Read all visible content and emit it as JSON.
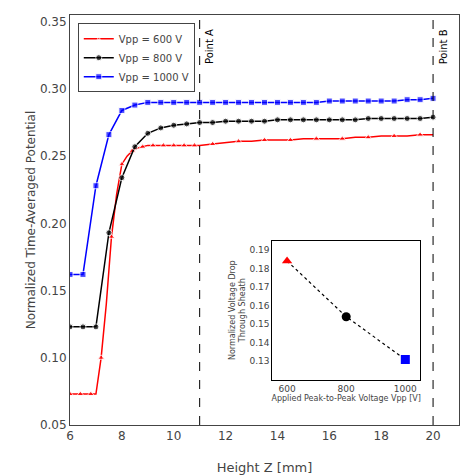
{
  "chart_data": [
    {
      "type": "line",
      "xlabel": "Height Z [mm]",
      "ylabel": "Normalized Time-Averaged Potential",
      "xlim": [
        6,
        21
      ],
      "ylim": [
        0.05,
        0.355
      ],
      "xticks": [
        6,
        8,
        10,
        12,
        14,
        16,
        18,
        20
      ],
      "yticks": [
        0.05,
        {
          "value": 0.1,
          "label": "0.10"
        },
        0.15,
        {
          "value": 0.2,
          "label": "0.20"
        },
        0.25,
        {
          "value": 0.3,
          "label": "0.30"
        },
        0.35
      ],
      "grid": false,
      "legend": "upper left",
      "series": [
        {
          "name": "Vpp = 600 V",
          "color": "red",
          "marker": "triangle-up",
          "line_style": "solid",
          "x": [
            6.0,
            6.2,
            6.4,
            6.6,
            6.8,
            7.0,
            7.2,
            7.4,
            7.6,
            7.8,
            8.0,
            8.2,
            8.4,
            8.6,
            8.8,
            9.0,
            9.2,
            9.4,
            9.6,
            9.8,
            10.0,
            10.2,
            10.4,
            10.6,
            10.8,
            11.0,
            11.5,
            12.0,
            12.5,
            13.0,
            13.5,
            14.0,
            14.5,
            15.0,
            15.5,
            16.0,
            16.5,
            17.0,
            17.5,
            18.0,
            18.5,
            19.0,
            19.5,
            20.0
          ],
          "values": [
            0.073,
            0.073,
            0.073,
            0.073,
            0.073,
            0.073,
            0.1,
            0.14,
            0.19,
            0.222,
            0.244,
            0.25,
            0.254,
            0.256,
            0.257,
            0.258,
            0.258,
            0.258,
            0.258,
            0.258,
            0.258,
            0.258,
            0.258,
            0.258,
            0.258,
            0.258,
            0.259,
            0.26,
            0.261,
            0.261,
            0.262,
            0.262,
            0.262,
            0.263,
            0.263,
            0.263,
            0.263,
            0.264,
            0.264,
            0.265,
            0.265,
            0.265,
            0.266,
            0.266
          ]
        },
        {
          "name": "Vpp = 800 V",
          "color": "black",
          "marker": "circle",
          "line_style": "solid",
          "x": [
            6.0,
            6.5,
            7.0,
            7.5,
            8.0,
            8.5,
            9.0,
            9.5,
            10.0,
            10.5,
            11.0,
            11.5,
            12.0,
            12.5,
            13.0,
            13.5,
            14.0,
            14.5,
            15.0,
            15.5,
            16.0,
            16.5,
            17.0,
            17.5,
            18.0,
            18.5,
            19.0,
            19.5,
            20.0
          ],
          "values": [
            0.123,
            0.123,
            0.123,
            0.193,
            0.234,
            0.257,
            0.267,
            0.271,
            0.273,
            0.274,
            0.275,
            0.275,
            0.276,
            0.276,
            0.276,
            0.276,
            0.277,
            0.277,
            0.277,
            0.277,
            0.277,
            0.277,
            0.277,
            0.278,
            0.278,
            0.278,
            0.278,
            0.278,
            0.279
          ]
        },
        {
          "name": "Vpp = 1000 V",
          "color": "blue",
          "marker": "square",
          "line_style": "solid",
          "x": [
            6.0,
            6.5,
            7.0,
            7.5,
            8.0,
            8.5,
            9.0,
            9.5,
            10.0,
            10.5,
            11.0,
            11.5,
            12.0,
            12.5,
            13.0,
            13.5,
            14.0,
            14.5,
            15.0,
            15.5,
            16.0,
            16.5,
            17.0,
            17.5,
            18.0,
            18.5,
            19.0,
            19.5,
            20.0
          ],
          "values": [
            0.162,
            0.162,
            0.228,
            0.266,
            0.284,
            0.288,
            0.29,
            0.29,
            0.29,
            0.29,
            0.29,
            0.29,
            0.29,
            0.29,
            0.29,
            0.29,
            0.29,
            0.29,
            0.29,
            0.29,
            0.291,
            0.291,
            0.291,
            0.291,
            0.291,
            0.291,
            0.292,
            0.292,
            0.293
          ]
        }
      ],
      "annotations": [
        {
          "x": 11.0,
          "text": "Point A",
          "color": "black",
          "line_style": "dashed"
        },
        {
          "x": 20.0,
          "text": "Point B",
          "color": "black",
          "line_style": "dashed"
        }
      ]
    },
    {
      "type": "scatter",
      "xlabel": "Applied Peak-to-Peak Voltage Vpp [V]",
      "ylabel": "Normalized Voltage Drop\nThrough Sheath",
      "xlim": [
        550,
        1050
      ],
      "ylim": [
        0.12,
        0.195
      ],
      "xticks": [
        600,
        800,
        1000
      ],
      "yticks": [
        0.13,
        0.14,
        0.15,
        0.16,
        0.17,
        0.18,
        0.19
      ],
      "grid": false,
      "x": [
        600,
        800,
        1000
      ],
      "series": [
        {
          "values": [
            0.184,
            0.154,
            0.131
          ],
          "colors": [
            "red",
            "black",
            "blue"
          ],
          "marker": [
            "triangle-up",
            "circle",
            "square"
          ],
          "color": "black",
          "line_style": "dotted"
        }
      ]
    }
  ]
}
